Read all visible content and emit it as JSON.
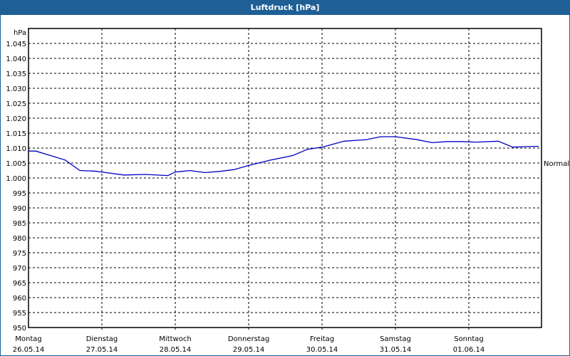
{
  "window": {
    "title": "Luftdruck [hPa]"
  },
  "chart_data": {
    "type": "line",
    "title": "Luftdruck [hPa]",
    "ylabel": "hPa",
    "xlabel": "",
    "ylim": [
      950,
      1050
    ],
    "grid": true,
    "y_ticks": [
      "1.045",
      "1.040",
      "1.035",
      "1.030",
      "1.025",
      "1.020",
      "1.015",
      "1.010",
      "1.005",
      "1.000",
      "995",
      "990",
      "985",
      "980",
      "975",
      "970",
      "965",
      "960",
      "955",
      "950"
    ],
    "x_ticks": [
      {
        "day": "Montag",
        "date": "26.05.14"
      },
      {
        "day": "Dienstag",
        "date": "27.05.14"
      },
      {
        "day": "Mittwoch",
        "date": "28.05.14"
      },
      {
        "day": "Donnerstag",
        "date": "29.05.14"
      },
      {
        "day": "Freitag",
        "date": "30.05.14"
      },
      {
        "day": "Samstag",
        "date": "31.05.14"
      },
      {
        "day": "Sonntag",
        "date": "01.06.14"
      }
    ],
    "reference_line": {
      "label": "Normal",
      "value": 1005
    },
    "series": [
      {
        "name": "Luftdruck",
        "color": "#0000c0",
        "x_days": [
          0,
          0.1,
          0.3,
          0.5,
          0.7,
          0.9,
          1.0,
          1.3,
          1.6,
          1.9,
          2.0,
          2.2,
          2.4,
          2.6,
          2.8,
          3.0,
          3.3,
          3.6,
          3.8,
          4.0,
          4.3,
          4.6,
          4.8,
          5.0,
          5.3,
          5.5,
          5.7,
          5.9,
          6.1,
          6.4,
          6.6,
          6.8,
          6.95
        ],
        "values": [
          1009,
          1009,
          1007.5,
          1006,
          1002.5,
          1002.3,
          1002,
          1001,
          1001.2,
          1000.8,
          1002,
          1002.5,
          1001.8,
          1002.2,
          1002.8,
          1004.2,
          1006,
          1007.5,
          1009.6,
          1010.3,
          1012.3,
          1012.8,
          1013.8,
          1013.8,
          1012.8,
          1011.8,
          1012.2,
          1012.2,
          1012,
          1012.3,
          1010.3,
          1010.5,
          1010.6
        ]
      }
    ]
  }
}
